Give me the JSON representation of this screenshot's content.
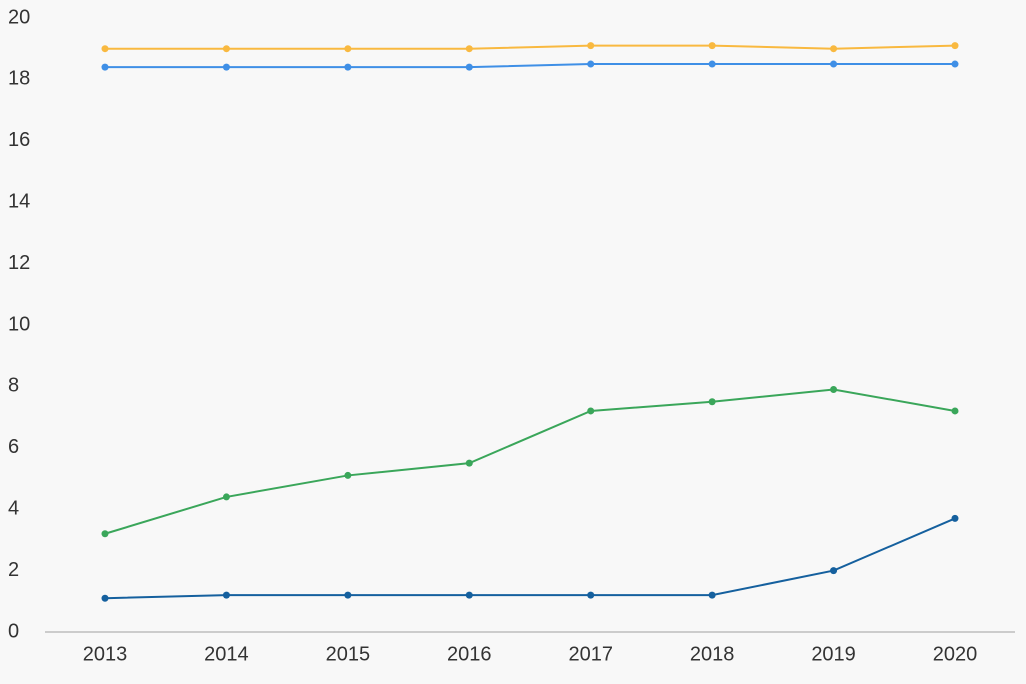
{
  "chart_data": {
    "type": "line",
    "categories": [
      "2013",
      "2014",
      "2015",
      "2016",
      "2017",
      "2018",
      "2019",
      "2020"
    ],
    "series": [
      {
        "color": "#f9b940",
        "values": [
          19.0,
          19.0,
          19.0,
          19.0,
          19.1,
          19.1,
          19.0,
          19.1
        ]
      },
      {
        "color": "#3f8fe6",
        "values": [
          18.4,
          18.4,
          18.4,
          18.4,
          18.5,
          18.5,
          18.5,
          18.5
        ]
      },
      {
        "color": "#3aa65a",
        "values": [
          3.2,
          4.4,
          5.1,
          5.5,
          7.2,
          7.5,
          7.9,
          7.2
        ]
      },
      {
        "color": "#15609e",
        "values": [
          1.1,
          1.2,
          1.2,
          1.2,
          1.2,
          1.2,
          2.0,
          3.7
        ]
      }
    ],
    "ylim": [
      0,
      20
    ],
    "yticks": [
      0,
      2,
      4,
      6,
      8,
      10,
      12,
      14,
      16,
      18,
      20
    ],
    "grid": false
  }
}
